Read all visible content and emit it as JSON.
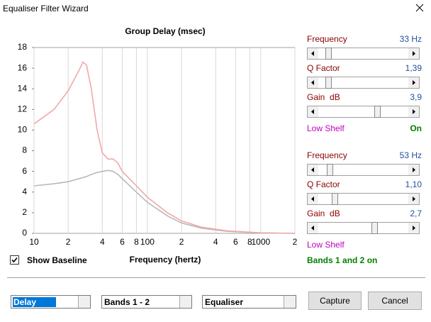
{
  "window": {
    "title": "Equaliser Filter Wizard"
  },
  "chart_data": {
    "type": "line",
    "title": "Group Delay (msec)",
    "x_label": "Frequency (hertz)",
    "log_x": true,
    "grid": "x",
    "x": [
      10,
      15,
      20,
      25,
      27,
      29,
      32,
      36,
      40,
      45,
      50,
      55,
      60,
      80,
      100,
      150,
      200,
      300,
      500,
      1000,
      2000
    ],
    "series": [
      {
        "color": "#b8b8b8",
        "values": [
          4.6,
          4.8,
          5.0,
          5.3,
          5.4,
          5.5,
          5.7,
          5.9,
          6.0,
          6.1,
          6.0,
          5.7,
          5.3,
          4.0,
          3.0,
          1.7,
          1.0,
          0.5,
          0.2,
          0.05,
          0
        ]
      },
      {
        "color": "#f0a8a8",
        "values": [
          10.6,
          12.0,
          13.8,
          15.8,
          16.6,
          16.3,
          14.0,
          10.0,
          7.8,
          7.2,
          7.2,
          6.8,
          6.0,
          4.6,
          3.5,
          2.0,
          1.2,
          0.6,
          0.25,
          0.05,
          0
        ]
      }
    ],
    "xlim": [
      10,
      2000
    ],
    "xticks": [
      10,
      {
        "value": 20,
        "label": "2"
      },
      {
        "value": 40,
        "label": "4"
      },
      {
        "value": 60,
        "label": "6"
      },
      {
        "value": 80,
        "label": "8"
      },
      100,
      {
        "value": 200,
        "label": "2"
      },
      {
        "value": 400,
        "label": "4"
      },
      {
        "value": 600,
        "label": "6"
      },
      {
        "value": 800,
        "label": "8"
      },
      1000,
      {
        "value": 2000,
        "label": "2"
      }
    ],
    "ylim": [
      0,
      18
    ],
    "yticks": [
      0,
      2,
      4,
      6,
      8,
      10,
      12,
      14,
      16,
      18
    ]
  },
  "panel": {
    "bands": [
      {
        "rows": [
          {
            "label": "Frequency",
            "value": "33 Hz"
          },
          {
            "label": "Q Factor",
            "value": "1,39"
          },
          {
            "label": "Gain  dB",
            "value": "3,9"
          }
        ],
        "shelf": {
          "label": "Low Shelf",
          "value": "On"
        }
      },
      {
        "rows": [
          {
            "label": "Frequency",
            "value": "53 Hz"
          },
          {
            "label": "Q Factor",
            "value": "1,10"
          },
          {
            "label": "Gain  dB",
            "value": "2,7"
          }
        ],
        "shelf": {
          "label": "Low Shelf"
        }
      }
    ],
    "status": "Bands 1 and 2 on"
  },
  "show_baseline": {
    "label": "Show Baseline",
    "checked": true
  },
  "controls": {
    "dropdowns": [
      "Delay",
      "Bands 1 - 2",
      "Equaliser"
    ],
    "buttons": [
      "Capture",
      "Cancel"
    ]
  }
}
